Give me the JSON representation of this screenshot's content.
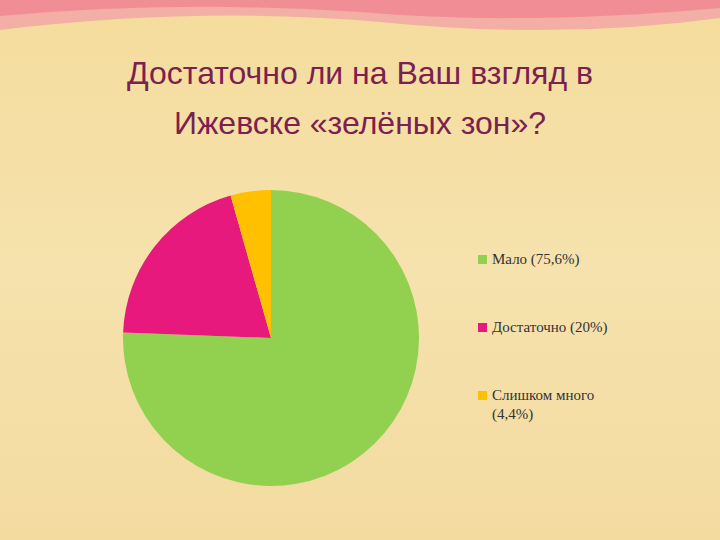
{
  "chart_data": {
    "type": "pie",
    "title": "Достаточно ли на Ваш взгляд в Ижевске «зелёных зон»?",
    "categories": [
      "Мало (75,6%)",
      "Достаточно (20%)",
      "Слишком много (4,4%)"
    ],
    "values": [
      75.6,
      20,
      4.4
    ],
    "colors": [
      "#92d050",
      "#e8197d",
      "#ffc000"
    ],
    "legend": "right"
  }
}
